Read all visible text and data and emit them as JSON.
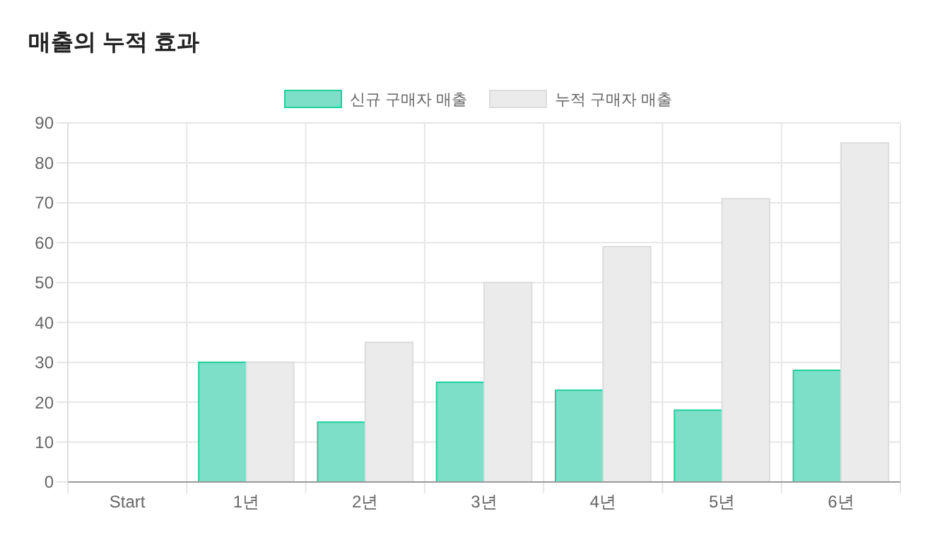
{
  "chart_data": {
    "type": "bar",
    "title": "매출의 누적 효과",
    "categories": [
      "Start",
      "1년",
      "2년",
      "3년",
      "4년",
      "5년",
      "6년"
    ],
    "series": [
      {
        "name": "신규 구매자 매출",
        "color": "#7ddfc8",
        "values": [
          0,
          30,
          15,
          25,
          23,
          18,
          28
        ]
      },
      {
        "name": "누적 구매자 매출",
        "color": "#ebebeb",
        "values": [
          0,
          30,
          35,
          50,
          59,
          71,
          85
        ]
      }
    ],
    "ylim": [
      0,
      90
    ],
    "yticks": [
      0,
      10,
      20,
      30,
      40,
      50,
      60,
      70,
      80,
      90
    ],
    "grid": true,
    "legend": "top"
  }
}
